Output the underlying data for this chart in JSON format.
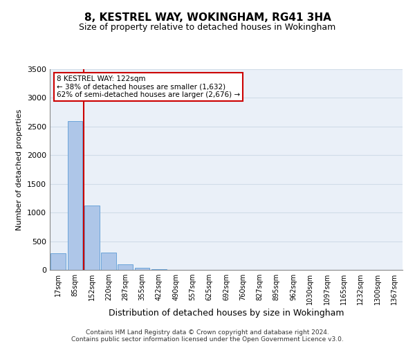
{
  "title": "8, KESTREL WAY, WOKINGHAM, RG41 3HA",
  "subtitle": "Size of property relative to detached houses in Wokingham",
  "xlabel": "Distribution of detached houses by size in Wokingham",
  "ylabel": "Number of detached properties",
  "bar_labels": [
    "17sqm",
    "85sqm",
    "152sqm",
    "220sqm",
    "287sqm",
    "355sqm",
    "422sqm",
    "490sqm",
    "557sqm",
    "625sqm",
    "692sqm",
    "760sqm",
    "827sqm",
    "895sqm",
    "962sqm",
    "1030sqm",
    "1097sqm",
    "1165sqm",
    "1232sqm",
    "1300sqm",
    "1367sqm"
  ],
  "bar_values": [
    290,
    2600,
    1120,
    300,
    95,
    35,
    15,
    0,
    0,
    0,
    0,
    0,
    0,
    0,
    0,
    0,
    0,
    0,
    0,
    0,
    0
  ],
  "bar_color": "#aec6e8",
  "bar_edge_color": "#5b9bd5",
  "vline_x": 1.5,
  "annotation_title": "8 KESTREL WAY: 122sqm",
  "annotation_line1": "← 38% of detached houses are smaller (1,632)",
  "annotation_line2": "62% of semi-detached houses are larger (2,676) →",
  "annotation_box_color": "#ffffff",
  "annotation_box_edge_color": "#cc0000",
  "vline_color": "#cc0000",
  "ylim": [
    0,
    3500
  ],
  "yticks": [
    0,
    500,
    1000,
    1500,
    2000,
    2500,
    3000,
    3500
  ],
  "grid_color": "#d0dce8",
  "background_color": "#eaf0f8",
  "footer_line1": "Contains HM Land Registry data © Crown copyright and database right 2024.",
  "footer_line2": "Contains public sector information licensed under the Open Government Licence v3.0."
}
